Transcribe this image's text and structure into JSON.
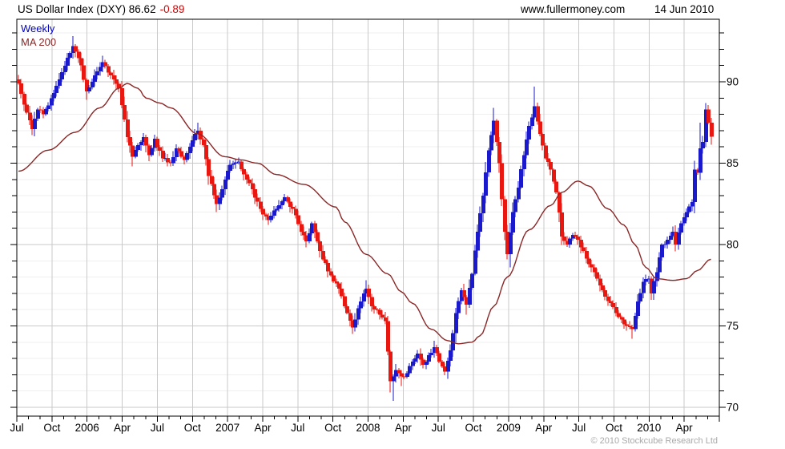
{
  "header": {
    "title": "US Dollar Index (DXY) 86.62",
    "change": "-0.89",
    "site": "www.fullermoney.com",
    "date": "14 Jun 2010"
  },
  "legend": {
    "weekly": "Weekly",
    "ma": "MA 200"
  },
  "footer": {
    "copyright": "© 2010 Stockcube Research Ltd"
  },
  "colors": {
    "up_candle": "#1a1acc",
    "down_candle": "#e81710",
    "ma_line": "#8b2626",
    "grid_major": "#c9c9c9",
    "grid_minor": "#efefef",
    "border": "#000000",
    "axis_text": "#000000",
    "change_text": "#d40000",
    "weekly_text": "#0000bb",
    "copyright_text": "#a9a9a9"
  },
  "chart_data": {
    "type": "candlestick+line",
    "instrument": "US Dollar Index (DXY)",
    "interval": "Weekly",
    "last_close": 86.62,
    "change": -0.89,
    "overlay": "MA 200",
    "weeks": 256,
    "y_axis": {
      "tick_labels": [
        90,
        85,
        80,
        75,
        70
      ],
      "minor_step": 1,
      "top_value": 93.8,
      "bottom_value": 69.4
    },
    "x_axis": {
      "labels": [
        "Jul",
        "Oct",
        "2006",
        "Apr",
        "Jul",
        "Oct",
        "2007",
        "Apr",
        "Jul",
        "Oct",
        "2008",
        "Apr",
        "Jul",
        "Oct",
        "2009",
        "Apr",
        "Jul",
        "Oct",
        "2010",
        "Apr"
      ],
      "start": "Jul 2005",
      "end": "Jun 2010",
      "months_per_label": 3
    },
    "close_anchors": [
      [
        0,
        89.9
      ],
      [
        2,
        88.6
      ],
      [
        5,
        87.1
      ],
      [
        7,
        88.3
      ],
      [
        9,
        88.0
      ],
      [
        13,
        89.3
      ],
      [
        16,
        90.6
      ],
      [
        20,
        92.2
      ],
      [
        23,
        91.0
      ],
      [
        25,
        89.4
      ],
      [
        28,
        90.4
      ],
      [
        31,
        91.2
      ],
      [
        34,
        90.4
      ],
      [
        37,
        89.6
      ],
      [
        40,
        86.6
      ],
      [
        42,
        85.4
      ],
      [
        44,
        86.1
      ],
      [
        46,
        86.6
      ],
      [
        48,
        85.5
      ],
      [
        50,
        86.5
      ],
      [
        53,
        85.3
      ],
      [
        56,
        85.0
      ],
      [
        58,
        85.9
      ],
      [
        61,
        85.2
      ],
      [
        64,
        86.4
      ],
      [
        66,
        87.0
      ],
      [
        68,
        86.1
      ],
      [
        70,
        84.2
      ],
      [
        73,
        82.5
      ],
      [
        76,
        84.0
      ],
      [
        78,
        84.9
      ],
      [
        81,
        85.1
      ],
      [
        83,
        84.3
      ],
      [
        86,
        83.4
      ],
      [
        89,
        82.2
      ],
      [
        92,
        81.5
      ],
      [
        95,
        82.2
      ],
      [
        98,
        82.9
      ],
      [
        101,
        82.2
      ],
      [
        104,
        80.8
      ],
      [
        106,
        80.2
      ],
      [
        108,
        81.3
      ],
      [
        110,
        80.2
      ],
      [
        112,
        79.1
      ],
      [
        115,
        78.1
      ],
      [
        118,
        77.3
      ],
      [
        121,
        75.8
      ],
      [
        123,
        74.9
      ],
      [
        126,
        76.5
      ],
      [
        128,
        77.3
      ],
      [
        130,
        76.2
      ],
      [
        133,
        75.7
      ],
      [
        135,
        75.3
      ],
      [
        137,
        71.6
      ],
      [
        139,
        72.3
      ],
      [
        141,
        71.9
      ],
      [
        143,
        72.1
      ],
      [
        145,
        72.8
      ],
      [
        147,
        73.3
      ],
      [
        149,
        72.6
      ],
      [
        151,
        73.2
      ],
      [
        153,
        73.7
      ],
      [
        155,
        72.8
      ],
      [
        157,
        72.2
      ],
      [
        159,
        73.5
      ],
      [
        161,
        75.8
      ],
      [
        163,
        77.2
      ],
      [
        165,
        76.3
      ],
      [
        167,
        78.2
      ],
      [
        169,
        80.8
      ],
      [
        171,
        83.0
      ],
      [
        173,
        85.8
      ],
      [
        175,
        87.6
      ],
      [
        177,
        85.0
      ],
      [
        179,
        80.8
      ],
      [
        180,
        79.4
      ],
      [
        182,
        82.0
      ],
      [
        184,
        83.5
      ],
      [
        186,
        85.5
      ],
      [
        188,
        87.3
      ],
      [
        190,
        88.5
      ],
      [
        192,
        86.8
      ],
      [
        194,
        85.3
      ],
      [
        196,
        84.6
      ],
      [
        198,
        83.2
      ],
      [
        200,
        80.5
      ],
      [
        202,
        80.0
      ],
      [
        204,
        80.6
      ],
      [
        206,
        80.3
      ],
      [
        208,
        79.6
      ],
      [
        210,
        78.8
      ],
      [
        212,
        78.3
      ],
      [
        214,
        77.5
      ],
      [
        216,
        76.8
      ],
      [
        218,
        76.4
      ],
      [
        220,
        75.8
      ],
      [
        222,
        75.4
      ],
      [
        224,
        75.0
      ],
      [
        226,
        74.8
      ],
      [
        228,
        76.5
      ],
      [
        230,
        77.7
      ],
      [
        232,
        77.9
      ],
      [
        233,
        77.0
      ],
      [
        235,
        78.3
      ],
      [
        237,
        80.0
      ],
      [
        239,
        80.3
      ],
      [
        241,
        80.8
      ],
      [
        242,
        80.0
      ],
      [
        244,
        81.3
      ],
      [
        246,
        82.0
      ],
      [
        248,
        82.6
      ],
      [
        249,
        84.6
      ],
      [
        250,
        84.4
      ],
      [
        251,
        85.9
      ],
      [
        252,
        86.3
      ],
      [
        253,
        88.3
      ],
      [
        254,
        87.5
      ],
      [
        255,
        86.62
      ]
    ],
    "extremes": [
      [
        20,
        "high",
        92.8
      ],
      [
        25,
        "low",
        88.9
      ],
      [
        31,
        "high",
        91.6
      ],
      [
        42,
        "low",
        84.8
      ],
      [
        66,
        "high",
        87.5
      ],
      [
        73,
        "low",
        82.0
      ],
      [
        92,
        "low",
        81.2
      ],
      [
        123,
        "low",
        74.5
      ],
      [
        128,
        "high",
        77.8
      ],
      [
        137,
        "low",
        70.9
      ],
      [
        138,
        "low",
        70.4
      ],
      [
        141,
        "low",
        71.3
      ],
      [
        153,
        "high",
        74.1
      ],
      [
        165,
        "low",
        75.7
      ],
      [
        175,
        "high",
        88.4
      ],
      [
        181,
        "low",
        78.6
      ],
      [
        190,
        "high",
        89.7
      ],
      [
        226,
        "low",
        74.2
      ],
      [
        251,
        "high",
        87.5
      ],
      [
        253,
        "high",
        88.7
      ],
      [
        255,
        "low",
        86.3
      ]
    ],
    "ma_anchors": [
      [
        0,
        84.5
      ],
      [
        11,
        85.8
      ],
      [
        21,
        86.9
      ],
      [
        30,
        88.4
      ],
      [
        37,
        89.6
      ],
      [
        40,
        89.9
      ],
      [
        44,
        89.6
      ],
      [
        47,
        89.0
      ],
      [
        52,
        88.7
      ],
      [
        56,
        88.4
      ],
      [
        66,
        86.8
      ],
      [
        76,
        85.4
      ],
      [
        82,
        85.2
      ],
      [
        88,
        85.0
      ],
      [
        95,
        84.3
      ],
      [
        105,
        83.7
      ],
      [
        117,
        82.3
      ],
      [
        120,
        81.4
      ],
      [
        128,
        79.4
      ],
      [
        136,
        78.2
      ],
      [
        141,
        77.1
      ],
      [
        145,
        76.4
      ],
      [
        152,
        74.8
      ],
      [
        158,
        74.1
      ],
      [
        162,
        73.9
      ],
      [
        167,
        74.0
      ],
      [
        170,
        74.4
      ],
      [
        175,
        76.2
      ],
      [
        180,
        78.0
      ],
      [
        188,
        80.9
      ],
      [
        196,
        82.4
      ],
      [
        200,
        83.2
      ],
      [
        206,
        83.9
      ],
      [
        210,
        83.6
      ],
      [
        217,
        82.2
      ],
      [
        223,
        81.2
      ],
      [
        227,
        80.0
      ],
      [
        231,
        78.6
      ],
      [
        235,
        77.9
      ],
      [
        241,
        77.8
      ],
      [
        246,
        77.9
      ],
      [
        250,
        78.4
      ],
      [
        255,
        79.1
      ]
    ],
    "noise_seed": 11,
    "noise_amp": 0.13
  }
}
